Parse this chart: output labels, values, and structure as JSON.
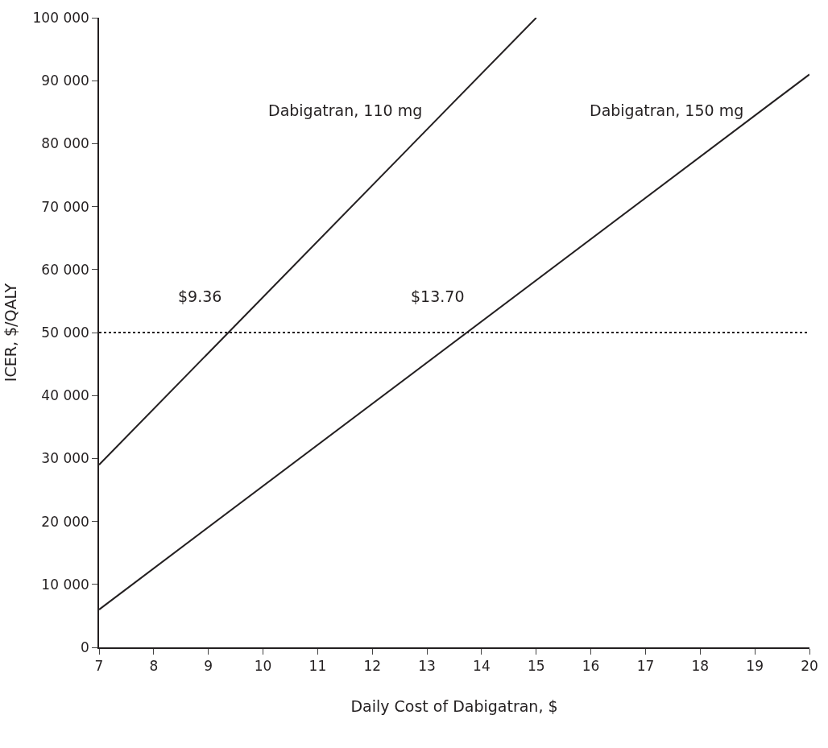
{
  "chart_data": {
    "type": "line",
    "xlabel": "Daily Cost of Dabigatran, $",
    "ylabel": "ICER, $/QALY",
    "series": [
      {
        "name": "Dabigatran, 110 mg",
        "color": "#231f20",
        "x": [
          7,
          15
        ],
        "values": [
          29000,
          100000
        ]
      },
      {
        "name": "Dabigatran, 150 mg",
        "color": "#231f20",
        "x": [
          7,
          20
        ],
        "values": [
          6000,
          91000
        ]
      }
    ],
    "xlim": [
      7,
      20
    ],
    "xticks": [
      7,
      8,
      9,
      10,
      11,
      12,
      13,
      14,
      15,
      16,
      17,
      18,
      19,
      20
    ],
    "ylim": [
      0,
      100000
    ],
    "yticks": [
      0,
      {
        "value": 10000,
        "label": "10 000"
      },
      {
        "value": 20000,
        "label": "20 000"
      },
      {
        "value": 30000,
        "label": "30 000"
      },
      {
        "value": 40000,
        "label": "40 000"
      },
      {
        "value": 50000,
        "label": "50 000"
      },
      {
        "value": 60000,
        "label": "60 000"
      },
      {
        "value": 70000,
        "label": "70 000"
      },
      {
        "value": 80000,
        "label": "80 000"
      },
      {
        "value": 90000,
        "label": "90 000"
      },
      {
        "value": 100000,
        "label": "100 000"
      }
    ],
    "ref_lines": [
      {
        "axis": "y",
        "value": 50000,
        "color": "#231f20",
        "line_style": "dotted"
      }
    ],
    "annotations": [
      {
        "text": "$9.36",
        "x": 9.36,
        "y": 50000
      },
      {
        "text": "$13.70",
        "x": 13.7,
        "y": 50000
      }
    ],
    "legend": false,
    "marker": "none",
    "line_style": "solid"
  }
}
